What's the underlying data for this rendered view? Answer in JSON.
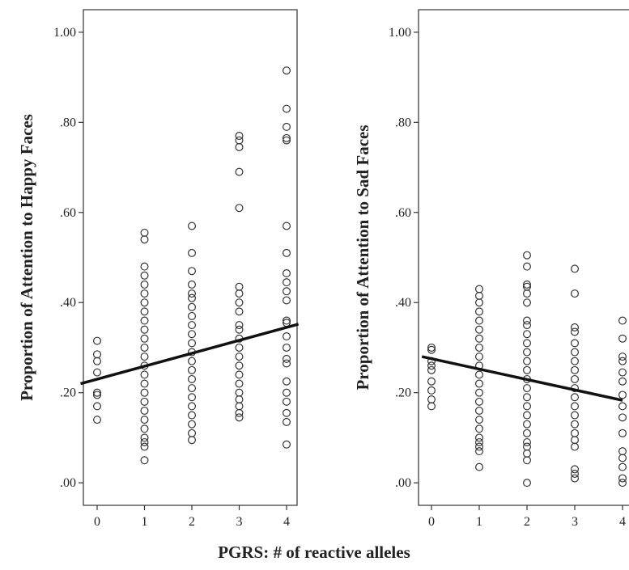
{
  "figure": {
    "xlabel": "PGRS: # of reactive alleles"
  },
  "chart_data": [
    {
      "type": "scatter",
      "ylabel": "Proportion of Attention to Happy Faces",
      "x_ticks": [
        "0",
        "1",
        "2",
        "3",
        "4"
      ],
      "y_ticks": [
        ".00",
        ".20",
        ".40",
        ".60",
        ".80",
        "1.00"
      ],
      "y_tick_values": [
        0,
        0.2,
        0.4,
        0.6,
        0.8,
        1.0
      ],
      "xlim": [
        -0.35,
        4.25
      ],
      "ylim": [
        -0.05,
        1.05
      ],
      "regression": {
        "x0": -0.35,
        "y0": 0.22,
        "x1": 4.25,
        "y1": 0.352
      },
      "points": [
        [
          0,
          0.14
        ],
        [
          0,
          0.17
        ],
        [
          0,
          0.195
        ],
        [
          0,
          0.2
        ],
        [
          0,
          0.245
        ],
        [
          0,
          0.27
        ],
        [
          0,
          0.285
        ],
        [
          0,
          0.315
        ],
        [
          1,
          0.05
        ],
        [
          1,
          0.08
        ],
        [
          1,
          0.09
        ],
        [
          1,
          0.1
        ],
        [
          1,
          0.12
        ],
        [
          1,
          0.14
        ],
        [
          1,
          0.16
        ],
        [
          1,
          0.18
        ],
        [
          1,
          0.2
        ],
        [
          1,
          0.22
        ],
        [
          1,
          0.24
        ],
        [
          1,
          0.26
        ],
        [
          1,
          0.28
        ],
        [
          1,
          0.3
        ],
        [
          1,
          0.32
        ],
        [
          1,
          0.34
        ],
        [
          1,
          0.36
        ],
        [
          1,
          0.38
        ],
        [
          1,
          0.4
        ],
        [
          1,
          0.42
        ],
        [
          1,
          0.44
        ],
        [
          1,
          0.46
        ],
        [
          1,
          0.48
        ],
        [
          1,
          0.54
        ],
        [
          1,
          0.555
        ],
        [
          2,
          0.095
        ],
        [
          2,
          0.11
        ],
        [
          2,
          0.13
        ],
        [
          2,
          0.15
        ],
        [
          2,
          0.17
        ],
        [
          2,
          0.19
        ],
        [
          2,
          0.21
        ],
        [
          2,
          0.23
        ],
        [
          2,
          0.25
        ],
        [
          2,
          0.27
        ],
        [
          2,
          0.29
        ],
        [
          2,
          0.31
        ],
        [
          2,
          0.33
        ],
        [
          2,
          0.35
        ],
        [
          2,
          0.37
        ],
        [
          2,
          0.39
        ],
        [
          2,
          0.41
        ],
        [
          2,
          0.42
        ],
        [
          2,
          0.44
        ],
        [
          2,
          0.47
        ],
        [
          2,
          0.51
        ],
        [
          2,
          0.57
        ],
        [
          3,
          0.145
        ],
        [
          3,
          0.155
        ],
        [
          3,
          0.17
        ],
        [
          3,
          0.185
        ],
        [
          3,
          0.2
        ],
        [
          3,
          0.22
        ],
        [
          3,
          0.24
        ],
        [
          3,
          0.26
        ],
        [
          3,
          0.28
        ],
        [
          3,
          0.3
        ],
        [
          3,
          0.32
        ],
        [
          3,
          0.34
        ],
        [
          3,
          0.35
        ],
        [
          3,
          0.38
        ],
        [
          3,
          0.4
        ],
        [
          3,
          0.42
        ],
        [
          3,
          0.435
        ],
        [
          3,
          0.61
        ],
        [
          3,
          0.69
        ],
        [
          3,
          0.745
        ],
        [
          3,
          0.76
        ],
        [
          3,
          0.77
        ],
        [
          4,
          0.085
        ],
        [
          4,
          0.135
        ],
        [
          4,
          0.155
        ],
        [
          4,
          0.18
        ],
        [
          4,
          0.2
        ],
        [
          4,
          0.225
        ],
        [
          4,
          0.265
        ],
        [
          4,
          0.275
        ],
        [
          4,
          0.3
        ],
        [
          4,
          0.325
        ],
        [
          4,
          0.355
        ],
        [
          4,
          0.36
        ],
        [
          4,
          0.405
        ],
        [
          4,
          0.425
        ],
        [
          4,
          0.445
        ],
        [
          4,
          0.465
        ],
        [
          4,
          0.51
        ],
        [
          4,
          0.57
        ],
        [
          4,
          0.76
        ],
        [
          4,
          0.765
        ],
        [
          4,
          0.79
        ],
        [
          4,
          0.83
        ],
        [
          4,
          0.915
        ]
      ]
    },
    {
      "type": "scatter",
      "ylabel": "Proportion of Attention to Sad Faces",
      "x_ticks": [
        "0",
        "1",
        "2",
        "3",
        "4"
      ],
      "y_ticks": [
        ".00",
        ".20",
        ".40",
        ".60",
        ".80",
        "1.00"
      ],
      "y_tick_values": [
        0,
        0.2,
        0.4,
        0.6,
        0.8,
        1.0
      ],
      "xlim": [
        -0.2,
        4.0
      ],
      "ylim": [
        -0.05,
        1.05
      ],
      "regression": {
        "x0": -0.2,
        "y0": 0.28,
        "x1": 4.0,
        "y1": 0.183
      },
      "points": [
        [
          0,
          0.17
        ],
        [
          0,
          0.185
        ],
        [
          0,
          0.205
        ],
        [
          0,
          0.225
        ],
        [
          0,
          0.25
        ],
        [
          0,
          0.26
        ],
        [
          0,
          0.27
        ],
        [
          0,
          0.295
        ],
        [
          0,
          0.3
        ],
        [
          1,
          0.035
        ],
        [
          1,
          0.07
        ],
        [
          1,
          0.08
        ],
        [
          1,
          0.09
        ],
        [
          1,
          0.1
        ],
        [
          1,
          0.12
        ],
        [
          1,
          0.14
        ],
        [
          1,
          0.16
        ],
        [
          1,
          0.18
        ],
        [
          1,
          0.2
        ],
        [
          1,
          0.22
        ],
        [
          1,
          0.24
        ],
        [
          1,
          0.26
        ],
        [
          1,
          0.28
        ],
        [
          1,
          0.3
        ],
        [
          1,
          0.32
        ],
        [
          1,
          0.34
        ],
        [
          1,
          0.36
        ],
        [
          1,
          0.38
        ],
        [
          1,
          0.4
        ],
        [
          1,
          0.415
        ],
        [
          1,
          0.43
        ],
        [
          2,
          0.0
        ],
        [
          2,
          0.05
        ],
        [
          2,
          0.065
        ],
        [
          2,
          0.08
        ],
        [
          2,
          0.09
        ],
        [
          2,
          0.11
        ],
        [
          2,
          0.13
        ],
        [
          2,
          0.15
        ],
        [
          2,
          0.17
        ],
        [
          2,
          0.19
        ],
        [
          2,
          0.21
        ],
        [
          2,
          0.23
        ],
        [
          2,
          0.25
        ],
        [
          2,
          0.27
        ],
        [
          2,
          0.29
        ],
        [
          2,
          0.31
        ],
        [
          2,
          0.33
        ],
        [
          2,
          0.35
        ],
        [
          2,
          0.36
        ],
        [
          2,
          0.4
        ],
        [
          2,
          0.42
        ],
        [
          2,
          0.435
        ],
        [
          2,
          0.44
        ],
        [
          2,
          0.48
        ],
        [
          2,
          0.505
        ],
        [
          3,
          0.01
        ],
        [
          3,
          0.02
        ],
        [
          3,
          0.03
        ],
        [
          3,
          0.08
        ],
        [
          3,
          0.095
        ],
        [
          3,
          0.11
        ],
        [
          3,
          0.13
        ],
        [
          3,
          0.15
        ],
        [
          3,
          0.17
        ],
        [
          3,
          0.19
        ],
        [
          3,
          0.21
        ],
        [
          3,
          0.23
        ],
        [
          3,
          0.25
        ],
        [
          3,
          0.27
        ],
        [
          3,
          0.29
        ],
        [
          3,
          0.31
        ],
        [
          3,
          0.335
        ],
        [
          3,
          0.345
        ],
        [
          3,
          0.42
        ],
        [
          3,
          0.475
        ],
        [
          4,
          0.0
        ],
        [
          4,
          0.01
        ],
        [
          4,
          0.035
        ],
        [
          4,
          0.055
        ],
        [
          4,
          0.07
        ],
        [
          4,
          0.11
        ],
        [
          4,
          0.145
        ],
        [
          4,
          0.17
        ],
        [
          4,
          0.195
        ],
        [
          4,
          0.225
        ],
        [
          4,
          0.245
        ],
        [
          4,
          0.27
        ],
        [
          4,
          0.28
        ],
        [
          4,
          0.32
        ],
        [
          4,
          0.36
        ]
      ]
    }
  ]
}
